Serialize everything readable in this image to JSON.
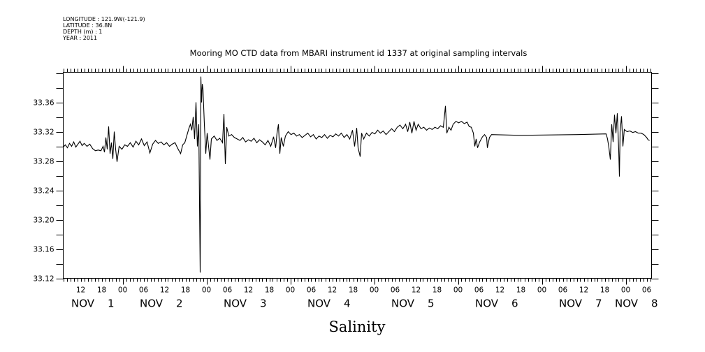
{
  "header": {
    "lines": [
      "LONGITUDE : 121.9W(-121.9)",
      "LATITUDE : 36.8N",
      "DEPTH (m) : 1",
      "YEAR : 2011"
    ]
  },
  "chart_data": {
    "type": "line",
    "title": "Mooring MO CTD data from MBARI instrument id 1337 at original sampling intervals",
    "xlabel": "Salinity",
    "ylabel": "",
    "x_units": "hours since NOV 1 2011 00:00",
    "xlim": [
      7,
      175.4
    ],
    "ylim": [
      33.12,
      33.401
    ],
    "grid": false,
    "y_ticks": [
      33.12,
      33.14,
      33.16,
      33.18,
      33.2,
      33.22,
      33.24,
      33.26,
      33.28,
      33.3,
      33.32,
      33.34,
      33.36,
      33.38,
      33.4
    ],
    "y_tick_labels": [
      {
        "value": 33.12,
        "label": "33.12"
      },
      {
        "value": 33.16,
        "label": "33.16"
      },
      {
        "value": 33.2,
        "label": "33.20"
      },
      {
        "value": 33.24,
        "label": "33.24"
      },
      {
        "value": 33.28,
        "label": "33.28"
      },
      {
        "value": 33.32,
        "label": "33.32"
      },
      {
        "value": 33.36,
        "label": "33.36"
      }
    ],
    "x_tick_labels": [
      {
        "hour": 12,
        "label": "12"
      },
      {
        "hour": 18,
        "label": "18"
      },
      {
        "hour": 24,
        "label": "00"
      },
      {
        "hour": 30,
        "label": "06"
      },
      {
        "hour": 36,
        "label": "12"
      },
      {
        "hour": 42,
        "label": "18"
      },
      {
        "hour": 48,
        "label": "00"
      },
      {
        "hour": 54,
        "label": "06"
      },
      {
        "hour": 60,
        "label": "12"
      },
      {
        "hour": 66,
        "label": "18"
      },
      {
        "hour": 72,
        "label": "00"
      },
      {
        "hour": 78,
        "label": "06"
      },
      {
        "hour": 84,
        "label": "12"
      },
      {
        "hour": 90,
        "label": "18"
      },
      {
        "hour": 96,
        "label": "00"
      },
      {
        "hour": 102,
        "label": "06"
      },
      {
        "hour": 108,
        "label": "12"
      },
      {
        "hour": 114,
        "label": "18"
      },
      {
        "hour": 120,
        "label": "00"
      },
      {
        "hour": 126,
        "label": "06"
      },
      {
        "hour": 132,
        "label": "12"
      },
      {
        "hour": 138,
        "label": "18"
      },
      {
        "hour": 144,
        "label": "00"
      },
      {
        "hour": 150,
        "label": "06"
      },
      {
        "hour": 156,
        "label": "12"
      },
      {
        "hour": 162,
        "label": "18"
      },
      {
        "hour": 168,
        "label": "00"
      },
      {
        "hour": 174,
        "label": "06"
      }
    ],
    "date_labels": [
      {
        "month": "NOV",
        "day": "1"
      },
      {
        "month": "NOV",
        "day": "2"
      },
      {
        "month": "NOV",
        "day": "3"
      },
      {
        "month": "NOV",
        "day": "4"
      },
      {
        "month": "NOV",
        "day": "5"
      },
      {
        "month": "NOV",
        "day": "6"
      },
      {
        "month": "NOV",
        "day": "7"
      },
      {
        "month": "NOV",
        "day": "8"
      }
    ],
    "series": [
      {
        "name": "Salinity",
        "color": "#000000",
        "points": [
          [
            7.0,
            33.299
          ],
          [
            7.6,
            33.302
          ],
          [
            8.2,
            33.298
          ],
          [
            8.8,
            33.304
          ],
          [
            9.4,
            33.3
          ],
          [
            10.0,
            33.306
          ],
          [
            10.6,
            33.299
          ],
          [
            11.2,
            33.303
          ],
          [
            11.8,
            33.307
          ],
          [
            12.4,
            33.301
          ],
          [
            13.0,
            33.304
          ],
          [
            13.8,
            33.3
          ],
          [
            14.6,
            33.303
          ],
          [
            15.4,
            33.297
          ],
          [
            16.2,
            33.294
          ],
          [
            17.0,
            33.295
          ],
          [
            17.8,
            33.294
          ],
          [
            18.4,
            33.3
          ],
          [
            18.8,
            33.292
          ],
          [
            19.2,
            33.312
          ],
          [
            19.6,
            33.296
          ],
          [
            20.0,
            33.327
          ],
          [
            20.4,
            33.29
          ],
          [
            20.8,
            33.305
          ],
          [
            21.2,
            33.283
          ],
          [
            21.6,
            33.32
          ],
          [
            22.0,
            33.296
          ],
          [
            22.4,
            33.279
          ],
          [
            23.0,
            33.3
          ],
          [
            23.8,
            33.296
          ],
          [
            24.6,
            33.302
          ],
          [
            25.4,
            33.3
          ],
          [
            26.2,
            33.305
          ],
          [
            27.0,
            33.299
          ],
          [
            27.8,
            33.307
          ],
          [
            28.6,
            33.302
          ],
          [
            29.4,
            33.31
          ],
          [
            30.2,
            33.301
          ],
          [
            31.0,
            33.306
          ],
          [
            31.8,
            33.291
          ],
          [
            32.6,
            33.303
          ],
          [
            33.4,
            33.308
          ],
          [
            34.2,
            33.304
          ],
          [
            35.0,
            33.306
          ],
          [
            35.8,
            33.302
          ],
          [
            36.6,
            33.305
          ],
          [
            37.4,
            33.3
          ],
          [
            38.2,
            33.303
          ],
          [
            39.0,
            33.305
          ],
          [
            39.8,
            33.297
          ],
          [
            40.6,
            33.29
          ],
          [
            41.2,
            33.302
          ],
          [
            41.8,
            33.305
          ],
          [
            42.4,
            33.315
          ],
          [
            43.0,
            33.325
          ],
          [
            43.4,
            33.33
          ],
          [
            43.8,
            33.322
          ],
          [
            44.2,
            33.34
          ],
          [
            44.6,
            33.31
          ],
          [
            45.0,
            33.36
          ],
          [
            45.4,
            33.3
          ],
          [
            45.8,
            33.33
          ],
          [
            46.0,
            33.225
          ],
          [
            46.2,
            33.128
          ],
          [
            46.4,
            33.395
          ],
          [
            46.6,
            33.36
          ],
          [
            46.8,
            33.385
          ],
          [
            47.0,
            33.378
          ],
          [
            47.4,
            33.33
          ],
          [
            47.8,
            33.29
          ],
          [
            48.2,
            33.318
          ],
          [
            48.6,
            33.3
          ],
          [
            49.0,
            33.282
          ],
          [
            49.4,
            33.31
          ],
          [
            50.2,
            33.314
          ],
          [
            51.0,
            33.308
          ],
          [
            51.8,
            33.311
          ],
          [
            52.6,
            33.305
          ],
          [
            53.0,
            33.344
          ],
          [
            53.4,
            33.276
          ],
          [
            53.8,
            33.326
          ],
          [
            54.4,
            33.314
          ],
          [
            55.2,
            33.316
          ],
          [
            56.0,
            33.312
          ],
          [
            56.8,
            33.31
          ],
          [
            57.6,
            33.308
          ],
          [
            58.4,
            33.312
          ],
          [
            59.2,
            33.306
          ],
          [
            60.0,
            33.309
          ],
          [
            60.8,
            33.307
          ],
          [
            61.6,
            33.311
          ],
          [
            62.4,
            33.305
          ],
          [
            63.2,
            33.309
          ],
          [
            64.0,
            33.306
          ],
          [
            64.8,
            33.302
          ],
          [
            65.6,
            33.308
          ],
          [
            66.4,
            33.3
          ],
          [
            67.2,
            33.313
          ],
          [
            67.8,
            33.298
          ],
          [
            68.2,
            33.318
          ],
          [
            68.6,
            33.33
          ],
          [
            69.0,
            33.29
          ],
          [
            69.4,
            33.312
          ],
          [
            70.0,
            33.3
          ],
          [
            70.6,
            33.314
          ],
          [
            71.4,
            33.32
          ],
          [
            72.2,
            33.316
          ],
          [
            73.0,
            33.318
          ],
          [
            73.8,
            33.314
          ],
          [
            74.6,
            33.316
          ],
          [
            75.4,
            33.312
          ],
          [
            76.2,
            33.315
          ],
          [
            77.0,
            33.318
          ],
          [
            77.8,
            33.313
          ],
          [
            78.6,
            33.316
          ],
          [
            79.4,
            33.31
          ],
          [
            80.2,
            33.314
          ],
          [
            81.0,
            33.312
          ],
          [
            81.8,
            33.316
          ],
          [
            82.6,
            33.311
          ],
          [
            83.4,
            33.315
          ],
          [
            84.2,
            33.313
          ],
          [
            85.0,
            33.317
          ],
          [
            85.8,
            33.314
          ],
          [
            86.6,
            33.318
          ],
          [
            87.4,
            33.312
          ],
          [
            88.2,
            33.316
          ],
          [
            89.0,
            33.31
          ],
          [
            89.8,
            33.322
          ],
          [
            90.4,
            33.3
          ],
          [
            91.0,
            33.325
          ],
          [
            91.4,
            33.298
          ],
          [
            92.0,
            33.286
          ],
          [
            92.4,
            33.318
          ],
          [
            93.0,
            33.31
          ],
          [
            93.8,
            33.318
          ],
          [
            94.6,
            33.314
          ],
          [
            95.4,
            33.319
          ],
          [
            96.2,
            33.317
          ],
          [
            97.0,
            33.322
          ],
          [
            97.8,
            33.318
          ],
          [
            98.6,
            33.321
          ],
          [
            99.4,
            33.316
          ],
          [
            100.2,
            33.32
          ],
          [
            101.0,
            33.324
          ],
          [
            101.8,
            33.32
          ],
          [
            102.6,
            33.326
          ],
          [
            103.4,
            33.329
          ],
          [
            104.2,
            33.324
          ],
          [
            105.0,
            33.33
          ],
          [
            105.6,
            33.32
          ],
          [
            106.2,
            33.333
          ],
          [
            106.8,
            33.318
          ],
          [
            107.4,
            33.334
          ],
          [
            108.0,
            33.322
          ],
          [
            108.6,
            33.33
          ],
          [
            109.4,
            33.324
          ],
          [
            110.2,
            33.326
          ],
          [
            111.0,
            33.322
          ],
          [
            111.8,
            33.325
          ],
          [
            112.6,
            33.323
          ],
          [
            113.4,
            33.326
          ],
          [
            114.2,
            33.324
          ],
          [
            115.0,
            33.328
          ],
          [
            115.8,
            33.326
          ],
          [
            116.4,
            33.355
          ],
          [
            116.8,
            33.318
          ],
          [
            117.4,
            33.326
          ],
          [
            118.0,
            33.322
          ],
          [
            118.6,
            33.33
          ],
          [
            119.4,
            33.334
          ],
          [
            120.2,
            33.332
          ],
          [
            121.0,
            33.334
          ],
          [
            121.8,
            33.331
          ],
          [
            122.6,
            33.333
          ],
          [
            123.2,
            33.327
          ],
          [
            123.8,
            33.326
          ],
          [
            124.4,
            33.318
          ],
          [
            124.8,
            33.3
          ],
          [
            125.2,
            33.31
          ],
          [
            125.6,
            33.298
          ],
          [
            126.2,
            33.306
          ],
          [
            127.0,
            33.313
          ],
          [
            127.6,
            33.316
          ],
          [
            128.2,
            33.312
          ],
          [
            128.4,
            33.298
          ],
          [
            129.0,
            33.312
          ],
          [
            129.6,
            33.316
          ],
          [
            137.8,
            33.315
          ],
          [
            154.2,
            33.316
          ],
          [
            162.4,
            33.317
          ],
          [
            162.8,
            33.31
          ],
          [
            163.2,
            33.298
          ],
          [
            163.6,
            33.282
          ],
          [
            164.0,
            33.33
          ],
          [
            164.4,
            33.306
          ],
          [
            164.8,
            33.343
          ],
          [
            165.2,
            33.318
          ],
          [
            165.6,
            33.345
          ],
          [
            166.0,
            33.295
          ],
          [
            166.2,
            33.259
          ],
          [
            166.4,
            33.32
          ],
          [
            166.8,
            33.341
          ],
          [
            167.2,
            33.3
          ],
          [
            167.6,
            33.323
          ],
          [
            168.4,
            33.32
          ],
          [
            169.2,
            33.321
          ],
          [
            170.0,
            33.319
          ],
          [
            170.8,
            33.32
          ],
          [
            171.6,
            33.318
          ],
          [
            172.4,
            33.318
          ],
          [
            173.2,
            33.316
          ],
          [
            174.0,
            33.312
          ],
          [
            174.4,
            33.309
          ],
          [
            174.8,
            33.308
          ]
        ]
      }
    ]
  }
}
